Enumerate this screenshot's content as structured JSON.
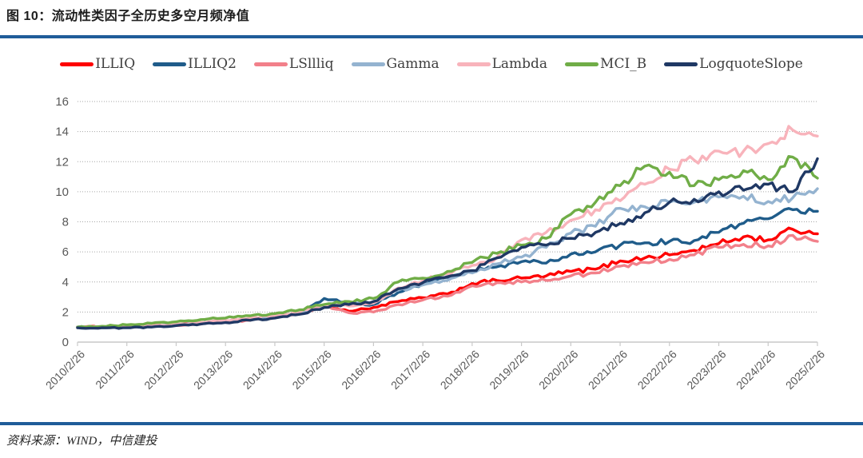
{
  "figure": {
    "title": "图 10：流动性类因子全历史多空月频净值",
    "source": "资料来源：WIND，中信建投"
  },
  "style_colors": {
    "divider_rule": "#1f5c99",
    "axis_text": "#595959",
    "gridline": "#a6a6a6",
    "axis_line": "#c9c9c9",
    "legend_text": "#3f3f3f"
  },
  "chart_data": {
    "type": "line",
    "title": "流动性类因子全历史多空月频净值",
    "xlabel": "",
    "ylabel": "",
    "ylim": [
      0,
      16
    ],
    "y_ticks": [
      0,
      2,
      4,
      6,
      8,
      10,
      12,
      14,
      16
    ],
    "grid": "horizontal-dotted",
    "legend_position": "top",
    "x_tick_labels": [
      "2010/2/26",
      "2011/2/26",
      "2012/2/26",
      "2013/2/26",
      "2014/2/26",
      "2015/2/26",
      "2016/2/26",
      "2017/2/26",
      "2018/2/26",
      "2019/2/26",
      "2020/2/26",
      "2021/2/26",
      "2022/2/26",
      "2023/2/26",
      "2024/2/26",
      "2025/2/26"
    ],
    "x_anchor_step_years": 0.5,
    "sampling_note": "values are semiannual net-value estimates read from the plot, 2010/2 through 2025/2",
    "series": [
      {
        "name": "ILLIQ",
        "color": "#fe0000",
        "values": [
          1.0,
          1.02,
          1.05,
          1.1,
          1.15,
          1.25,
          1.4,
          1.5,
          1.7,
          1.95,
          2.45,
          2.05,
          2.3,
          2.7,
          2.95,
          3.2,
          3.9,
          4.1,
          4.25,
          4.4,
          4.7,
          4.85,
          5.4,
          5.6,
          5.8,
          6.1,
          6.55,
          7.0,
          6.8,
          7.5,
          7.2
        ]
      },
      {
        "name": "ILLIQ2",
        "color": "#1f5c8a",
        "values": [
          1.0,
          1.0,
          1.0,
          1.05,
          1.15,
          1.25,
          1.35,
          1.5,
          1.65,
          1.9,
          2.9,
          2.6,
          2.5,
          3.3,
          3.9,
          4.3,
          4.7,
          5.0,
          5.35,
          5.25,
          5.85,
          6.0,
          6.45,
          6.6,
          6.7,
          6.75,
          7.3,
          7.9,
          8.2,
          8.8,
          8.7
        ]
      },
      {
        "name": "LSllliq",
        "color": "#f2808a",
        "values": [
          1.0,
          1.0,
          1.02,
          1.05,
          1.1,
          1.2,
          1.35,
          1.45,
          1.65,
          1.9,
          2.4,
          1.95,
          2.0,
          2.5,
          2.8,
          3.05,
          3.75,
          3.95,
          4.0,
          4.1,
          4.4,
          4.6,
          5.05,
          5.3,
          5.5,
          5.8,
          6.3,
          6.5,
          6.4,
          7.1,
          6.7
        ]
      },
      {
        "name": "Gamma",
        "color": "#94b3d0",
        "values": [
          1.0,
          1.0,
          1.02,
          1.08,
          1.15,
          1.25,
          1.4,
          1.55,
          1.7,
          1.95,
          2.4,
          2.55,
          2.6,
          3.45,
          3.8,
          4.1,
          4.6,
          5.2,
          5.65,
          6.3,
          7.25,
          7.7,
          8.9,
          9.0,
          9.3,
          9.3,
          9.65,
          9.7,
          9.35,
          9.6,
          10.2
        ]
      },
      {
        "name": "Lambda",
        "color": "#f8b3bb",
        "values": [
          1.0,
          1.02,
          1.05,
          1.1,
          1.18,
          1.3,
          1.45,
          1.6,
          1.75,
          2.0,
          2.5,
          2.4,
          2.6,
          3.6,
          4.1,
          4.55,
          5.1,
          5.6,
          6.8,
          7.3,
          8.1,
          8.8,
          9.4,
          10.5,
          11.5,
          12.1,
          12.7,
          12.7,
          13.2,
          14.1,
          13.7
        ]
      },
      {
        "name": "MCI_B",
        "color": "#70ad47",
        "values": [
          1.0,
          1.05,
          1.15,
          1.25,
          1.35,
          1.5,
          1.6,
          1.75,
          1.9,
          2.15,
          2.5,
          2.7,
          2.9,
          4.0,
          4.25,
          4.7,
          5.3,
          5.9,
          6.45,
          6.9,
          8.5,
          9.3,
          10.4,
          11.7,
          11.3,
          10.4,
          10.8,
          11.4,
          10.8,
          12.3,
          10.9
        ]
      },
      {
        "name": "LogquoteSlope",
        "color": "#1f3864",
        "values": [
          0.95,
          0.95,
          0.95,
          1.0,
          1.1,
          1.2,
          1.3,
          1.45,
          1.6,
          1.85,
          2.3,
          2.5,
          2.7,
          3.55,
          3.95,
          4.35,
          4.75,
          5.6,
          6.3,
          6.45,
          6.9,
          7.3,
          7.9,
          8.6,
          9.3,
          9.5,
          10.0,
          10.1,
          10.5,
          10.0,
          12.2
        ]
      }
    ]
  }
}
